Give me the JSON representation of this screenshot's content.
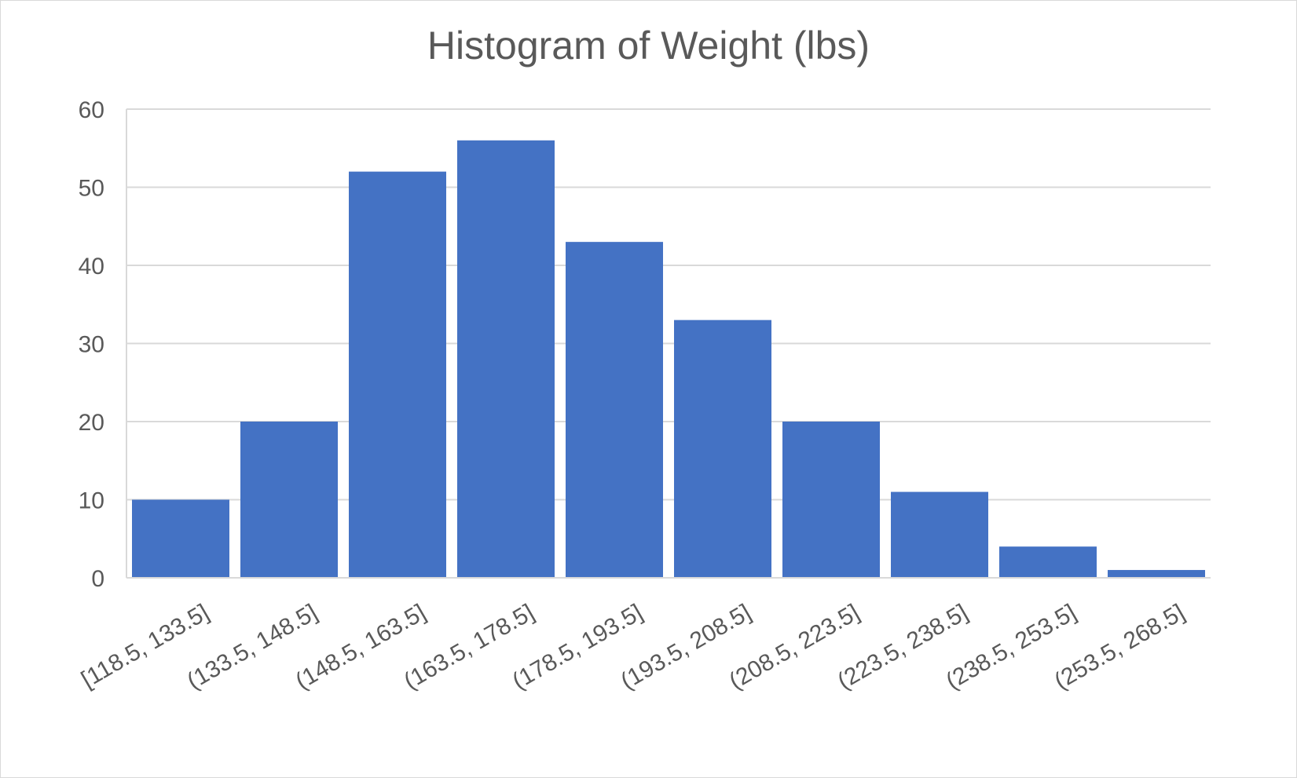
{
  "chart_data": {
    "type": "bar",
    "title": "Histogram of Weight (lbs)",
    "xlabel": "",
    "ylabel": "",
    "categories": [
      "[118.5, 133.5]",
      "(133.5, 148.5]",
      "(148.5, 163.5]",
      "(163.5, 178.5]",
      "(178.5, 193.5]",
      "(193.5, 208.5]",
      "(208.5, 223.5]",
      "(223.5, 238.5]",
      "(238.5, 253.5]",
      "(253.5, 268.5]"
    ],
    "values": [
      10,
      20,
      52,
      56,
      43,
      33,
      20,
      11,
      4,
      1
    ],
    "ylim": [
      0,
      60
    ],
    "yticks": [
      0,
      10,
      20,
      30,
      40,
      50,
      60
    ],
    "grid": true,
    "legend": "none",
    "bar_color": "#4472C4",
    "grid_color": "#d9d9d9",
    "text_color": "#595959"
  }
}
